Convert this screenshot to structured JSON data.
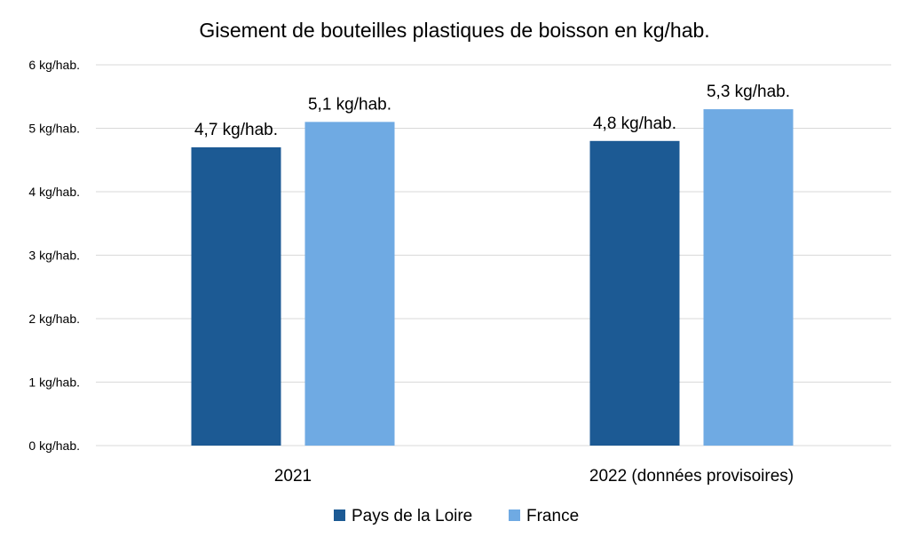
{
  "chart_data": {
    "type": "bar",
    "title": "Gisement de bouteilles plastiques de boisson en kg/hab.",
    "categories": [
      "2021",
      "2022 (données provisoires)"
    ],
    "series": [
      {
        "name": "Pays de la Loire",
        "color": "#1c5a94",
        "values": [
          4.7,
          4.8
        ],
        "labels": [
          "4,7 kg/hab.",
          "4,8 kg/hab."
        ]
      },
      {
        "name": "France",
        "color": "#6faae3",
        "values": [
          5.1,
          5.3
        ],
        "labels": [
          "5,1 kg/hab.",
          "5,3 kg/hab."
        ]
      }
    ],
    "ylim": [
      0,
      6
    ],
    "yticks": [
      0,
      1,
      2,
      3,
      4,
      5,
      6
    ],
    "ytick_labels": [
      "0 kg/hab.",
      "1 kg/hab.",
      "2 kg/hab.",
      "3 kg/hab.",
      "4 kg/hab.",
      "5 kg/hab.",
      "6 kg/hab."
    ],
    "grid": true,
    "legend_position": "bottom",
    "xlabel": "",
    "ylabel": ""
  }
}
